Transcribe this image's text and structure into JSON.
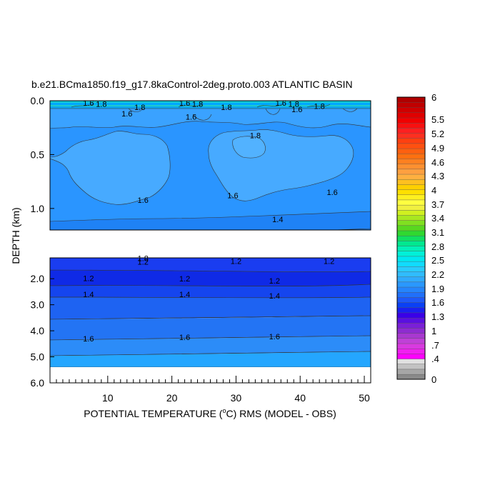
{
  "chart_data": {
    "type": "heatmap",
    "title": "b.e21.BCma1850.f19_g17.8kaControl-2deg.proto.003 ATLANTIC BASIN",
    "xlabel_pre": "POTENTIAL TEMPERATURE (",
    "xlabel_sup": "o",
    "xlabel_post": "C) RMS (MODEL - OBS)",
    "ylabel": "DEPTH (km)",
    "x_ticks": [
      "10",
      "20",
      "30",
      "40",
      "50"
    ],
    "x_tick_values": [
      10,
      20,
      30,
      40,
      50
    ],
    "xlim": [
      1,
      51
    ],
    "upper_panel": {
      "ylim": [
        0.0,
        1.2
      ],
      "y_ticks": [
        "0.0",
        "0.5",
        "1.0"
      ],
      "y_tick_values": [
        0.0,
        0.5,
        1.0
      ]
    },
    "lower_panel": {
      "ylim": [
        1.2,
        6.0
      ],
      "y_ticks": [
        "2.0",
        "3.0",
        "4.0",
        "5.0",
        "6.0"
      ],
      "y_tick_values": [
        2.0,
        3.0,
        4.0,
        5.0,
        6.0
      ],
      "data_bottom_depth": 5.4
    },
    "colorbar": {
      "min": 0,
      "max": 6,
      "labels": [
        "6",
        "5.5",
        "5.2",
        "4.9",
        "4.6",
        "4.3",
        "4",
        "3.7",
        "3.4",
        "3.1",
        "2.8",
        "2.5",
        "2.2",
        "1.9",
        "1.6",
        "1.3",
        "1",
        ".7",
        ".4",
        "0"
      ]
    },
    "contour_labels": [
      {
        "text": "1.6",
        "x": 7,
        "depth": 0.02
      },
      {
        "text": "1.8",
        "x": 9,
        "depth": 0.03
      },
      {
        "text": "1.8",
        "x": 15,
        "depth": 0.06
      },
      {
        "text": "1.6",
        "x": 13,
        "depth": 0.12
      },
      {
        "text": "1.6",
        "x": 22,
        "depth": 0.02
      },
      {
        "text": "1.8",
        "x": 24,
        "depth": 0.03
      },
      {
        "text": "1.6",
        "x": 23,
        "depth": 0.15
      },
      {
        "text": "1.8",
        "x": 28.5,
        "depth": 0.06
      },
      {
        "text": "1.6",
        "x": 37,
        "depth": 0.02
      },
      {
        "text": "1.8",
        "x": 39,
        "depth": 0.03
      },
      {
        "text": "1.6",
        "x": 39.5,
        "depth": 0.08
      },
      {
        "text": "1.8",
        "x": 43,
        "depth": 0.05
      },
      {
        "text": "1.8",
        "x": 33,
        "depth": 0.32
      },
      {
        "text": "1.6",
        "x": 15.5,
        "depth": 0.92
      },
      {
        "text": "1.6",
        "x": 29.5,
        "depth": 0.88
      },
      {
        "text": "1.6",
        "x": 45,
        "depth": 0.85
      },
      {
        "text": "1.4",
        "x": 36.5,
        "depth": 1.1
      },
      {
        "text": "1.8",
        "x": 15.5,
        "depth": 1.22
      },
      {
        "text": "1.2",
        "x": 15.5,
        "depth": 1.35
      },
      {
        "text": "1.2",
        "x": 30,
        "depth": 1.33
      },
      {
        "text": "1.2",
        "x": 44.5,
        "depth": 1.33
      },
      {
        "text": "1.2",
        "x": 7,
        "depth": 1.98
      },
      {
        "text": "1.2",
        "x": 22,
        "depth": 2.0
      },
      {
        "text": "1.2",
        "x": 36,
        "depth": 2.08
      },
      {
        "text": "1.4",
        "x": 7,
        "depth": 2.6
      },
      {
        "text": "1.4",
        "x": 22,
        "depth": 2.6
      },
      {
        "text": "1.4",
        "x": 36,
        "depth": 2.65
      },
      {
        "text": "1.6",
        "x": 7,
        "depth": 4.3
      },
      {
        "text": "1.6",
        "x": 22,
        "depth": 4.25
      },
      {
        "text": "1.6",
        "x": 36,
        "depth": 4.22
      }
    ]
  }
}
